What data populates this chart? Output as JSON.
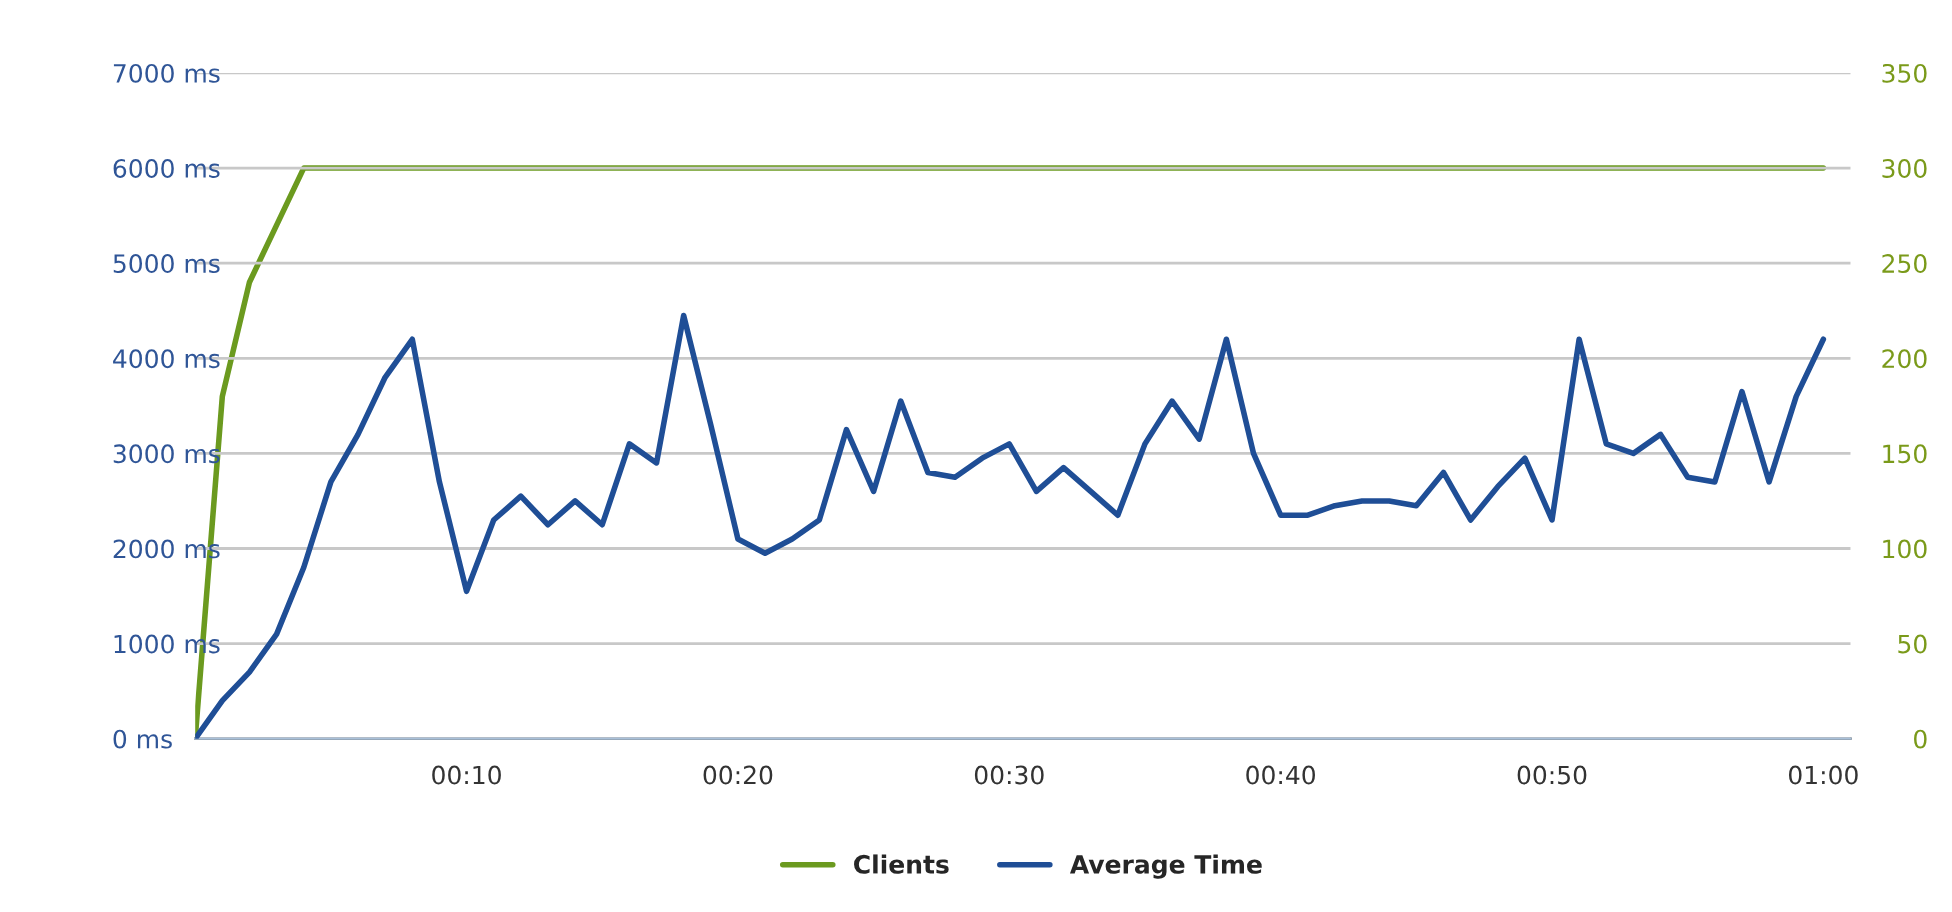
{
  "chart_data": {
    "type": "line",
    "x": [
      0,
      1,
      2,
      3,
      4,
      5,
      6,
      7,
      8,
      9,
      10,
      11,
      12,
      13,
      14,
      15,
      16,
      17,
      18,
      19,
      20,
      21,
      22,
      23,
      24,
      25,
      26,
      27,
      28,
      29,
      30,
      31,
      32,
      33,
      34,
      35,
      36,
      37,
      38,
      39,
      40,
      41,
      42,
      43,
      44,
      45,
      46,
      47,
      48,
      49,
      50,
      51,
      52,
      53,
      54,
      55,
      56,
      57,
      58,
      59,
      60
    ],
    "series": [
      {
        "name": "Clients",
        "color": "#6b9a1f",
        "axis": "y2",
        "x": [
          0,
          1,
          2,
          3,
          4,
          60
        ],
        "values": [
          0,
          180,
          240,
          270,
          300,
          300
        ]
      },
      {
        "name": "Average Time",
        "color": "#1f4e96",
        "values": [
          0,
          400,
          700,
          1100,
          1800,
          2700,
          3200,
          3800,
          4200,
          2700,
          1550,
          2300,
          2550,
          2250,
          2500,
          2250,
          3100,
          2900,
          4450,
          3300,
          2100,
          1950,
          2100,
          2300,
          3250,
          2600,
          3550,
          2800,
          2750,
          2950,
          3100,
          2600,
          2850,
          2600,
          2350,
          3100,
          3550,
          3150,
          4200,
          3000,
          2350,
          2350,
          2450,
          2500,
          2500,
          2450,
          2800,
          2300,
          2650,
          2950,
          2300,
          4200,
          3100,
          3000,
          3200,
          2750,
          2700,
          3650,
          2700,
          3600,
          4200
        ]
      }
    ],
    "xlim": [
      0,
      61
    ],
    "xticks": [
      {
        "value": 10,
        "label": "00:10"
      },
      {
        "value": 20,
        "label": "00:20"
      },
      {
        "value": 30,
        "label": "00:30"
      },
      {
        "value": 40,
        "label": "00:40"
      },
      {
        "value": 50,
        "label": "00:50"
      },
      {
        "value": 60,
        "label": "01:00"
      }
    ],
    "ylim": [
      0,
      7000
    ],
    "yticks": [
      {
        "value": 0,
        "label": "0 ms"
      },
      {
        "value": 1000,
        "label": "1000 ms"
      },
      {
        "value": 2000,
        "label": "2000 ms"
      },
      {
        "value": 3000,
        "label": "3000 ms"
      },
      {
        "value": 4000,
        "label": "4000 ms"
      },
      {
        "value": 5000,
        "label": "5000 ms"
      },
      {
        "value": 6000,
        "label": "6000 ms"
      },
      {
        "value": 7000,
        "label": "7000 ms"
      }
    ],
    "y2lim": [
      0,
      350
    ],
    "y2ticks": [
      0,
      50,
      100,
      150,
      200,
      250,
      300,
      350
    ],
    "grid": "y",
    "legend": "bottom",
    "marker": "none",
    "line_style": "solid"
  }
}
